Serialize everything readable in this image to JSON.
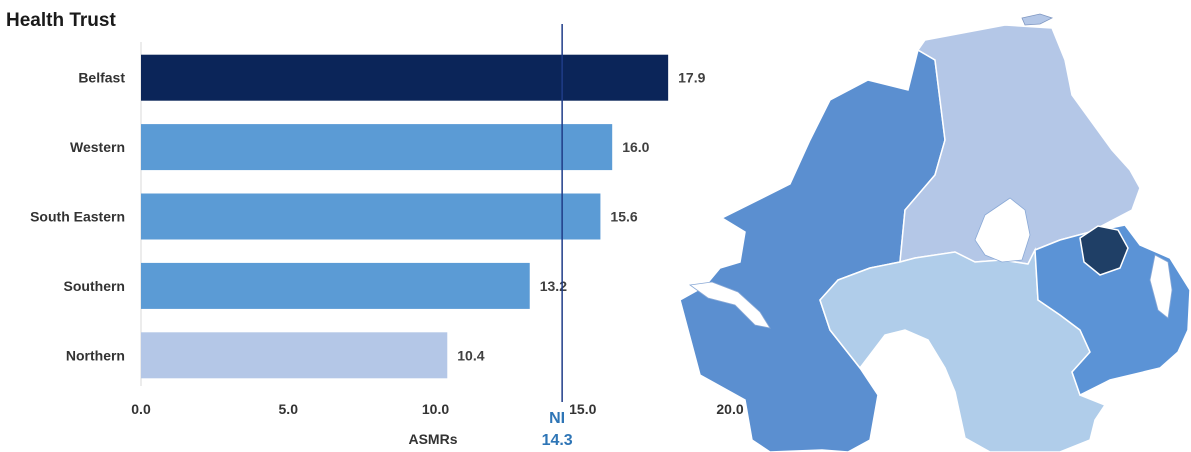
{
  "title": "Health Trust",
  "chart_data": {
    "type": "bar",
    "orientation": "horizontal",
    "categories": [
      "Belfast",
      "Western",
      "South Eastern",
      "Southern",
      "Northern"
    ],
    "values": [
      17.9,
      16.0,
      15.6,
      13.2,
      10.4
    ],
    "value_labels": [
      "17.9",
      "16.0",
      "15.6",
      "13.2",
      "10.4"
    ],
    "colors": [
      "#0b2559",
      "#5b9bd5",
      "#5b9bd5",
      "#5b9bd5",
      "#b4c7e7"
    ],
    "xlabel": "ASMRs",
    "xlim": [
      0,
      20
    ],
    "xticks": [
      0,
      5,
      10,
      15,
      20
    ],
    "xtick_labels": [
      "0.0",
      "5.0",
      "10.0",
      "15.0",
      "20.0"
    ],
    "reference_line": {
      "name": "NI",
      "value": 14.3,
      "label": "14.3",
      "color": "#1f3c88",
      "label_color": "#2e75b6"
    }
  },
  "map": {
    "regions": [
      {
        "name": "Western",
        "color": "#5b8fd0"
      },
      {
        "name": "Northern",
        "color": "#b4c7e7"
      },
      {
        "name": "Southern",
        "color": "#b0cdea"
      },
      {
        "name": "South Eastern",
        "color": "#5b93d6"
      },
      {
        "name": "Belfast",
        "color": "#1f3f66"
      }
    ],
    "water_color": "#ffffff",
    "border_color": "#ffffff"
  }
}
